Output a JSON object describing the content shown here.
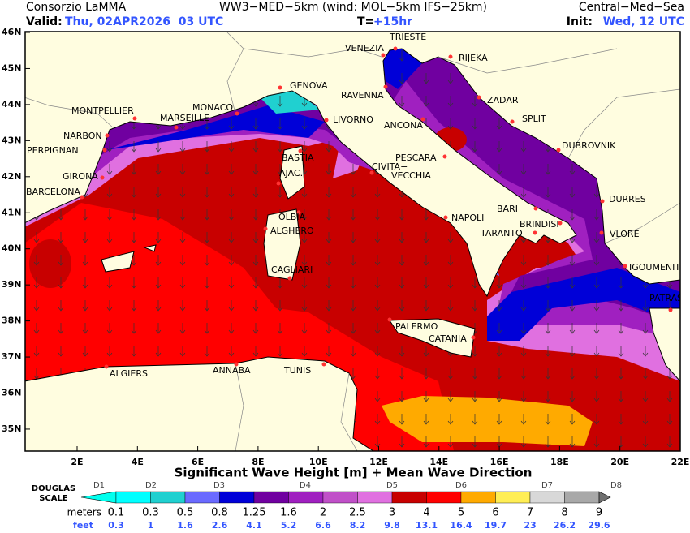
{
  "header": {
    "organization": "Consorzio LaMMA",
    "model": "WW3−MED−5km (wind: MOL−5km IFS−25km)",
    "region": "Central−Med−Sea",
    "valid_label": "Valid:",
    "valid_value": "Thu, 02APR2026  03 UTC",
    "step_label": "T=",
    "step_value": "+15hr",
    "init_label": "Init:",
    "init_value": "Wed, 12 UTC"
  },
  "axes": {
    "lat_labels": [
      "46N",
      "45N",
      "44N",
      "43N",
      "42N",
      "41N",
      "40N",
      "39N",
      "38N",
      "37N",
      "36N",
      "35N"
    ],
    "lon_labels": [
      "2E",
      "4E",
      "6E",
      "8E",
      "10E",
      "12E",
      "14E",
      "16E",
      "18E",
      "20E",
      "22E"
    ]
  },
  "cities": [
    "VENEZIA",
    "TRIESTE",
    "RIJEKA",
    "RAVENNA",
    "GENOVA",
    "MONTPELLIER",
    "MONACO",
    "MARSEILLE",
    "LIVORNO",
    "ANCONA",
    "ZADAR",
    "SPLIT",
    "DUBROVNIK",
    "NARBON",
    "PERPIGNAN",
    "BASTIA",
    "PESCARA",
    "GIRONA",
    "AJAC.",
    "CIVITA−",
    "VECCHIA",
    "BARCELONA",
    "DURRES",
    "BARI",
    "NAPOLI",
    "OLBIA",
    "BRINDISI",
    "ALGHERO",
    "TARANTO",
    "VLORE",
    "CAGLIARI",
    "IGOUMENITSA",
    "PATRAS",
    "PALERMO",
    "CATANIA",
    "ALGIERS",
    "ANNABA",
    "TUNIS"
  ],
  "legend": {
    "title": "Significant Wave Height [m] + Mean Wave Direction",
    "scale_label": "DOUGLAS SCALE",
    "douglas": [
      "D1",
      "D2",
      "D3",
      "D4",
      "D5",
      "D6",
      "D7",
      "D8"
    ],
    "meters_label": "meters",
    "feet_label": "feet",
    "meters": [
      "0.1",
      "0.3",
      "0.5",
      "0.8",
      "1.25",
      "1.6",
      "2",
      "2.5",
      "3",
      "4",
      "5",
      "6",
      "7",
      "8",
      "9"
    ],
    "feet": [
      "0.3",
      "1",
      "1.6",
      "2.6",
      "4.1",
      "5.2",
      "6.6",
      "8.2",
      "9.8",
      "13.1",
      "16.4",
      "19.7",
      "23",
      "26.2",
      "29.6"
    ],
    "colors": [
      "#00ffff",
      "#20d0d0",
      "#6a6aff",
      "#0000d8",
      "#7000a0",
      "#a020c0",
      "#c050c8",
      "#e070e0",
      "#c80000",
      "#ff0000",
      "#ffaa00",
      "#ffee55",
      "#d8d8d8",
      "#a8a8a8"
    ],
    "low_color": "#00ffee",
    "high_color": "#707070"
  }
}
